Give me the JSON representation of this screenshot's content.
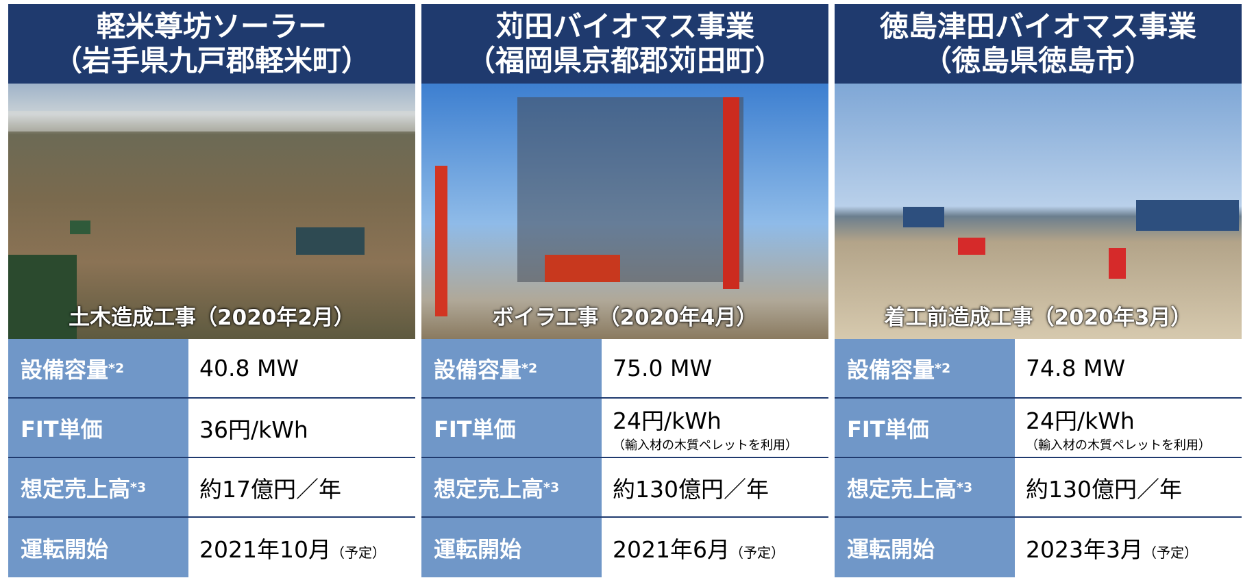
{
  "projects": [
    {
      "title": [
        "軽米尊坊ソーラー",
        "（岩手県九戸郡軽米町）"
      ],
      "caption": "土木造成工事（2020年2月）",
      "rows": [
        {
          "label": "設備容量",
          "sup": "*2",
          "value": "40.8 MW"
        },
        {
          "label": "FIT単価",
          "value": "36円/kWh"
        },
        {
          "label": "想定売上高",
          "sup": "*3",
          "value": "約17億円／年"
        },
        {
          "label": "運転開始",
          "value": "2021年10月",
          "note": "（予定）"
        }
      ]
    },
    {
      "title": [
        "苅田バイオマス事業",
        "（福岡県京都郡苅田町）"
      ],
      "caption": "ボイラ工事（2020年4月）",
      "rows": [
        {
          "label": "設備容量",
          "sup": "*2",
          "value": "75.0 MW"
        },
        {
          "label": "FIT単価",
          "value": "24円/kWh",
          "subnote": "（輸入材の木質ペレットを利用）"
        },
        {
          "label": "想定売上高",
          "sup": "*3",
          "value": "約130億円／年"
        },
        {
          "label": "運転開始",
          "value": "2021年6月",
          "note": "（予定）"
        }
      ]
    },
    {
      "title": [
        "徳島津田バイオマス事業",
        "（徳島県徳島市）"
      ],
      "caption": "着工前造成工事（2020年3月）",
      "rows": [
        {
          "label": "設備容量",
          "sup": "*2",
          "value": "74.8 MW"
        },
        {
          "label": "FIT単価",
          "value": "24円/kWh",
          "subnote": "（輸入材の木質ペレットを利用）"
        },
        {
          "label": "想定売上高",
          "sup": "*3",
          "value": "約130億円／年"
        },
        {
          "label": "運転開始",
          "value": "2023年3月",
          "note": "（予定）"
        }
      ]
    }
  ]
}
